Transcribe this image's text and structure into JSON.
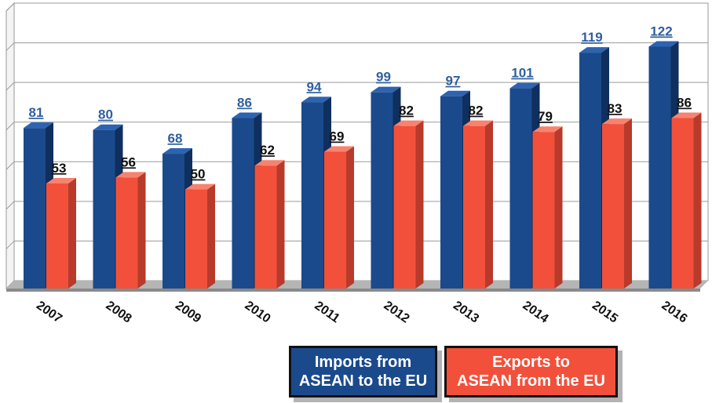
{
  "colors": {
    "imports": "#1a4a8c",
    "imports_side": "#0f2f5e",
    "exports": "#f2503b",
    "exports_side": "#b83a2a",
    "imports_label": "#2f5fa0",
    "exports_label": "#111111"
  },
  "chart_data": {
    "type": "bar",
    "categories": [
      "2007",
      "2008",
      "2009",
      "2010",
      "2011",
      "2012",
      "2013",
      "2014",
      "2015",
      "2016"
    ],
    "series": [
      {
        "name_lines": [
          "Imports from",
          "ASEAN to the EU"
        ],
        "values": [
          81,
          80,
          68,
          86,
          94,
          99,
          97,
          101,
          119,
          122
        ]
      },
      {
        "name_lines": [
          "Exports to",
          "ASEAN from the EU"
        ],
        "values": [
          53,
          56,
          50,
          62,
          69,
          82,
          82,
          79,
          83,
          86
        ]
      }
    ],
    "title": "",
    "xlabel": "",
    "ylabel": "",
    "ylim": [
      0,
      140
    ],
    "grid": true,
    "legend_position": "bottom-right",
    "data_labels": true
  }
}
